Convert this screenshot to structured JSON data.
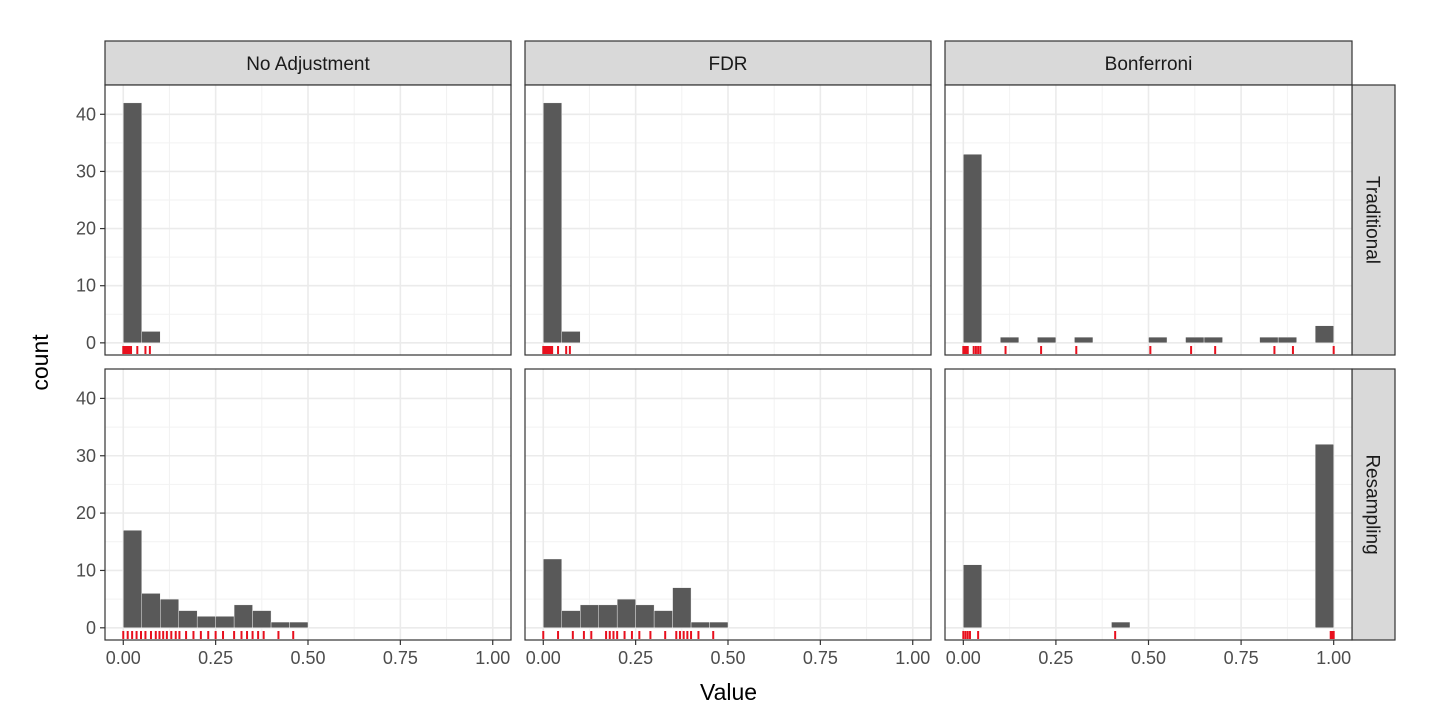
{
  "chart_data": {
    "type": "bar",
    "subtype": "faceted histogram with rug",
    "xlabel": "Value",
    "ylabel": "count",
    "xlim": [
      0,
      1
    ],
    "ylim": [
      0,
      43
    ],
    "x_ticks": [
      "0.00",
      "0.25",
      "0.50",
      "0.75",
      "1.00"
    ],
    "y_ticks": [
      "0",
      "10",
      "20",
      "30",
      "40"
    ],
    "bin_width": 0.05,
    "grid": true,
    "bar_color": "#595959",
    "rug_color": "#e8101e",
    "columns": [
      "No Adjustment",
      "FDR",
      "Bonferroni"
    ],
    "rows": [
      "Traditional",
      "Resampling"
    ],
    "panels": [
      {
        "row": "Traditional",
        "column": "No Adjustment",
        "bins": [
          {
            "x": 0.0,
            "count": 42
          },
          {
            "x": 0.05,
            "count": 2
          }
        ],
        "rug": [
          0.0,
          0.003,
          0.006,
          0.009,
          0.012,
          0.015,
          0.018,
          0.021,
          0.038,
          0.06,
          0.072
        ]
      },
      {
        "row": "Traditional",
        "column": "FDR",
        "bins": [
          {
            "x": 0.0,
            "count": 42
          },
          {
            "x": 0.05,
            "count": 2
          }
        ],
        "rug": [
          0.0,
          0.003,
          0.006,
          0.009,
          0.012,
          0.015,
          0.018,
          0.021,
          0.024,
          0.04,
          0.062,
          0.072
        ]
      },
      {
        "row": "Traditional",
        "column": "Bonferroni",
        "bins": [
          {
            "x": 0.0,
            "count": 33
          },
          {
            "x": 0.1,
            "count": 1
          },
          {
            "x": 0.2,
            "count": 1
          },
          {
            "x": 0.3,
            "count": 1
          },
          {
            "x": 0.5,
            "count": 1
          },
          {
            "x": 0.6,
            "count": 1
          },
          {
            "x": 0.65,
            "count": 1
          },
          {
            "x": 0.8,
            "count": 1
          },
          {
            "x": 0.85,
            "count": 1
          },
          {
            "x": 0.95,
            "count": 3
          }
        ],
        "rug": [
          0.0,
          0.004,
          0.008,
          0.012,
          0.028,
          0.034,
          0.04,
          0.046,
          0.114,
          0.21,
          0.305,
          0.505,
          0.615,
          0.68,
          0.84,
          0.89,
          1.0
        ]
      },
      {
        "row": "Resampling",
        "column": "No Adjustment",
        "bins": [
          {
            "x": 0.0,
            "count": 17
          },
          {
            "x": 0.05,
            "count": 6
          },
          {
            "x": 0.1,
            "count": 5
          },
          {
            "x": 0.15,
            "count": 3
          },
          {
            "x": 0.2,
            "count": 2
          },
          {
            "x": 0.25,
            "count": 2
          },
          {
            "x": 0.3,
            "count": 4
          },
          {
            "x": 0.35,
            "count": 3
          },
          {
            "x": 0.4,
            "count": 1
          },
          {
            "x": 0.45,
            "count": 1
          }
        ],
        "rug": [
          0.0,
          0.012,
          0.024,
          0.036,
          0.048,
          0.06,
          0.075,
          0.088,
          0.098,
          0.108,
          0.118,
          0.13,
          0.142,
          0.152,
          0.17,
          0.19,
          0.21,
          0.23,
          0.25,
          0.27,
          0.3,
          0.32,
          0.335,
          0.35,
          0.365,
          0.38,
          0.42,
          0.46
        ]
      },
      {
        "row": "Resampling",
        "column": "FDR",
        "bins": [
          {
            "x": 0.0,
            "count": 12
          },
          {
            "x": 0.05,
            "count": 3
          },
          {
            "x": 0.1,
            "count": 4
          },
          {
            "x": 0.15,
            "count": 4
          },
          {
            "x": 0.2,
            "count": 5
          },
          {
            "x": 0.25,
            "count": 4
          },
          {
            "x": 0.3,
            "count": 3
          },
          {
            "x": 0.35,
            "count": 7
          },
          {
            "x": 0.4,
            "count": 1
          },
          {
            "x": 0.45,
            "count": 1
          }
        ],
        "rug": [
          0.0,
          0.04,
          0.08,
          0.11,
          0.13,
          0.17,
          0.18,
          0.19,
          0.2,
          0.22,
          0.24,
          0.26,
          0.29,
          0.33,
          0.36,
          0.37,
          0.38,
          0.39,
          0.4,
          0.42,
          0.46
        ]
      },
      {
        "row": "Resampling",
        "column": "Bonferroni",
        "bins": [
          {
            "x": 0.0,
            "count": 11
          },
          {
            "x": 0.4,
            "count": 1
          },
          {
            "x": 0.95,
            "count": 32
          }
        ],
        "rug": [
          0.0,
          0.006,
          0.012,
          0.018,
          0.04,
          0.41,
          0.992,
          0.996,
          1.0
        ]
      }
    ]
  }
}
